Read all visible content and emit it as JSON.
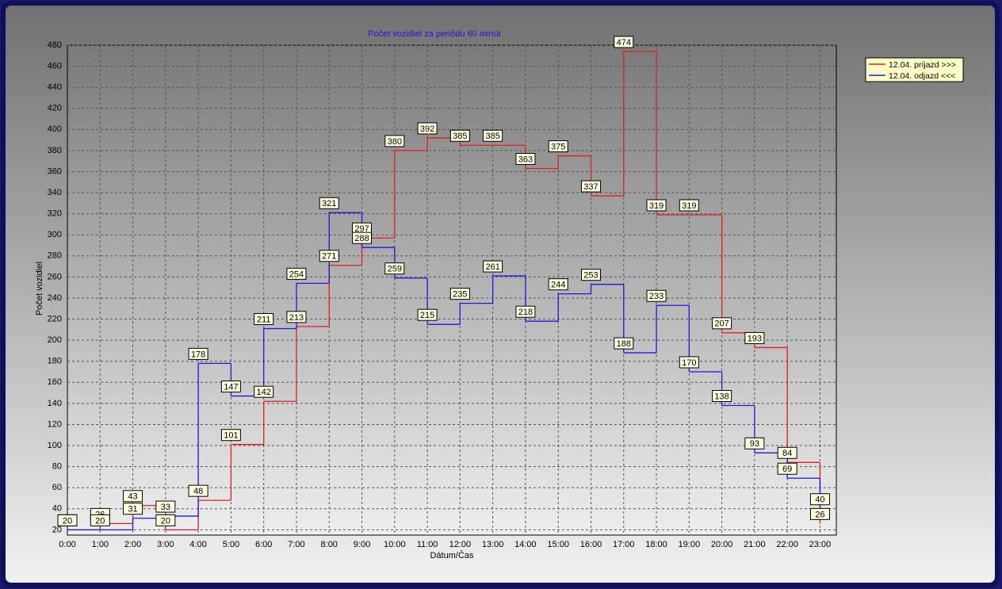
{
  "chart_data": {
    "type": "step",
    "title": "Počet vozidiel za periódu 60 minút",
    "x_label": "Dátum/Čas",
    "y_label": "Počet vozidiel",
    "categories": [
      "0:00",
      "1:00",
      "2:00",
      "3:00",
      "4:00",
      "5:00",
      "6:00",
      "7:00",
      "8:00",
      "9:00",
      "10:00",
      "11:00",
      "12:00",
      "13:00",
      "14:00",
      "15:00",
      "16:00",
      "17:00",
      "18:00",
      "19:00",
      "20:00",
      "21:00",
      "22:00",
      "23:00"
    ],
    "series": [
      {
        "name": "12.04.  príjazd >>>",
        "color": "#e02020",
        "values": [
          20,
          26,
          43,
          20,
          48,
          101,
          142,
          213,
          271,
          297,
          380,
          392,
          385,
          385,
          363,
          375,
          337,
          474,
          319,
          319,
          207,
          193,
          84,
          26
        ]
      },
      {
        "name": "12.04.  odjazd <<<",
        "color": "#1a1ae0",
        "values": [
          20,
          20,
          31,
          33,
          178,
          147,
          211,
          254,
          321,
          288,
          259,
          215,
          235,
          261,
          218,
          244,
          253,
          188,
          233,
          170,
          138,
          93,
          69,
          40
        ]
      }
    ],
    "ylim": [
      15,
      480
    ],
    "yticks": [
      20,
      40,
      60,
      80,
      100,
      120,
      140,
      160,
      180,
      200,
      220,
      240,
      260,
      280,
      300,
      320,
      340,
      360,
      380,
      400,
      420,
      440,
      460,
      480
    ],
    "grid": true,
    "legend": "outside-top-right"
  }
}
